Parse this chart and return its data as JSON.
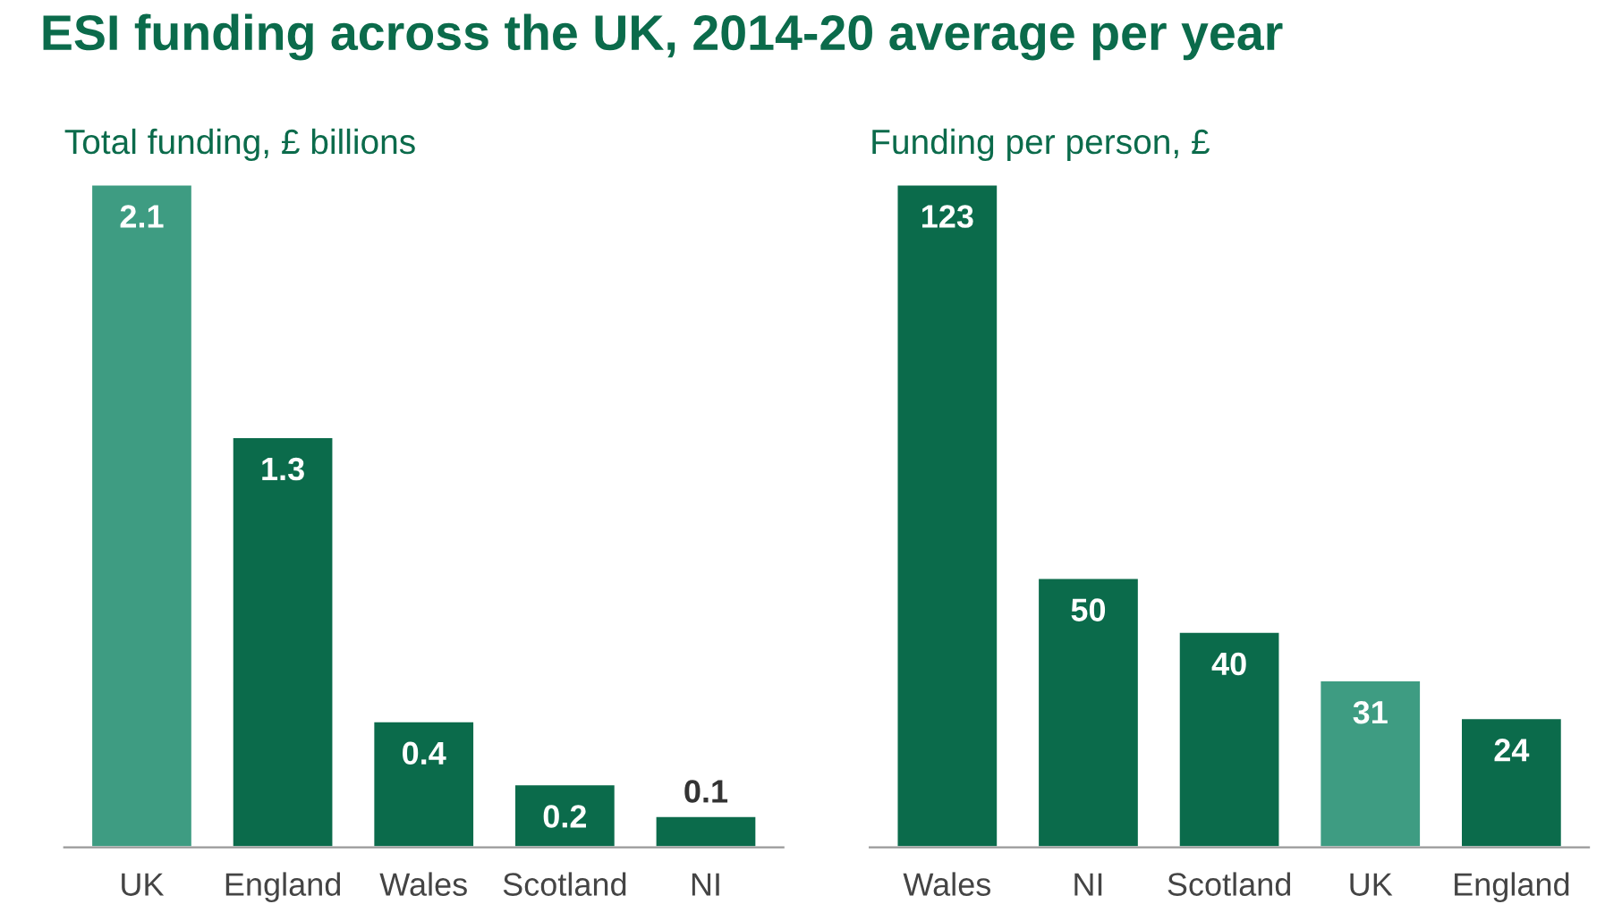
{
  "chart_data": [
    {
      "type": "bar",
      "title": "ESI funding across the UK, 2014-20 average per year",
      "subtitle": "Total funding, £ billions",
      "categories": [
        "UK",
        "England",
        "Wales",
        "Scotland",
        "NI"
      ],
      "values": [
        2.1,
        1.3,
        0.4,
        0.2,
        0.1
      ],
      "colors": [
        "#3e9c82",
        "#0b6b4b",
        "#0b6b4b",
        "#0b6b4b",
        "#0b6b4b"
      ],
      "data_labels": true,
      "tick_labels": "x",
      "grid": false,
      "legend": false
    },
    {
      "type": "bar",
      "subtitle": "Funding per person, £",
      "categories": [
        "Wales",
        "NI",
        "Scotland",
        "UK",
        "England"
      ],
      "values": [
        123,
        50,
        40,
        31,
        24
      ],
      "colors": [
        "#0b6b4b",
        "#0b6b4b",
        "#0b6b4b",
        "#3e9c82",
        "#0b6b4b"
      ],
      "data_labels": true,
      "tick_labels": "x",
      "grid": false,
      "legend": false
    }
  ]
}
